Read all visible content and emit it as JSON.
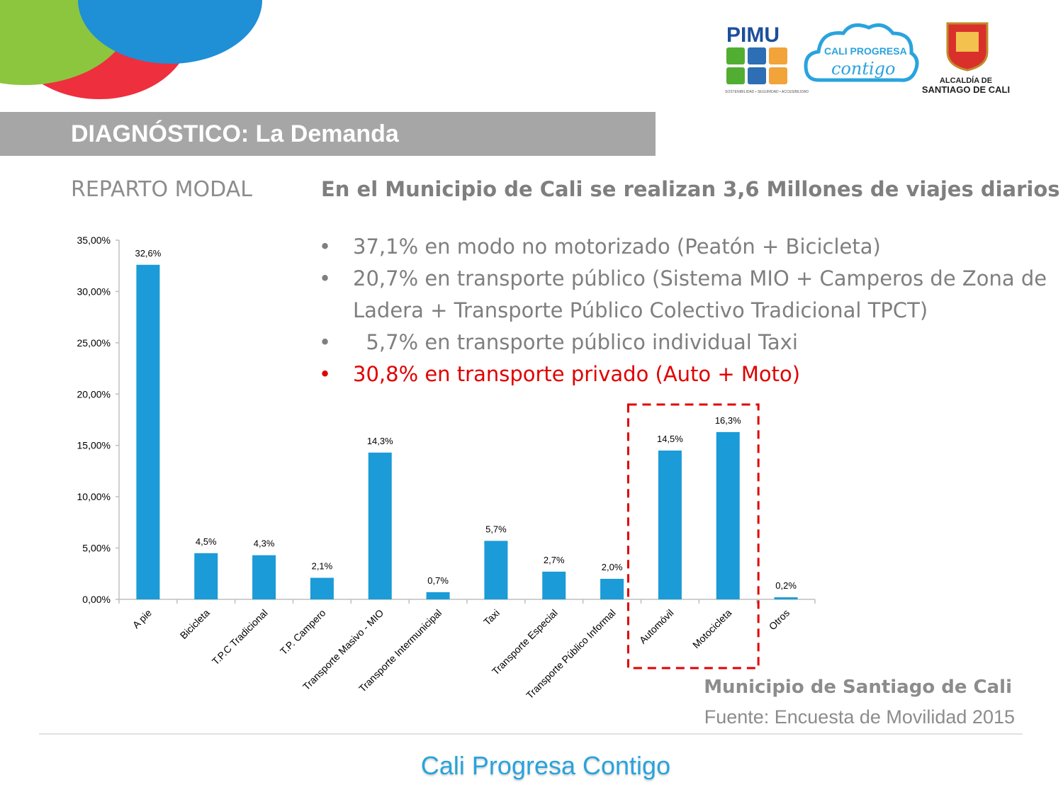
{
  "header": {
    "title": "DIAGNÓSTICO: La Demanda",
    "logos": {
      "pimu": "PIMU",
      "pimu_tagline": "SOSTENIBILIDAD • SEGURIDAD • ACCESIBILIDAD",
      "cali_line1": "CALI PROGRESA",
      "cali_line2": "contigo",
      "alcaldia_line1": "ALCALDÍA DE",
      "alcaldia_line2": "SANTIAGO DE CALI"
    }
  },
  "section_label": "REPARTO MODAL",
  "headline": "En el Municipio de Cali se realizan 3,6 Millones de viajes diarios",
  "bullets": [
    {
      "text": "37,1% en modo no motorizado (Peatón + Bicicleta)"
    },
    {
      "text": "20,7% en transporte público (Sistema MIO + Camperos de Zona de Ladera + Transporte Público Colectivo Tradicional TPCT)"
    },
    {
      "text": "  5,7% en transporte público individual Taxi"
    },
    {
      "text": "30,8% en transporte privado (Auto + Moto)"
    }
  ],
  "colors": {
    "bar": "#1b9bd7",
    "highlight": "#e00000",
    "title_bar": "#a6a6a6",
    "footer": "#29a3db"
  },
  "chart_data": {
    "type": "bar",
    "categories": [
      "A pie",
      "Bicicleta",
      "T.P.C Tradicional",
      "T.P. Campero",
      "Transporte Masivo - MIO",
      "Transporte Intermunicipal",
      "Taxi",
      "Transporte Especial",
      "Transporte Público Informal",
      "Automóvil",
      "Motocicleta",
      "Otros"
    ],
    "values": [
      32.6,
      4.5,
      4.3,
      2.1,
      14.3,
      0.7,
      5.7,
      2.7,
      2.0,
      14.5,
      16.3,
      0.2
    ],
    "data_labels": [
      "32,6%",
      "4,5%",
      "4,3%",
      "2,1%",
      "14,3%",
      "0,7%",
      "5,7%",
      "2,7%",
      "2,0%",
      "14,5%",
      "16,3%",
      "0,2%"
    ],
    "yticks": [
      "0,00%",
      "5,00%",
      "10,00%",
      "15,00%",
      "20,00%",
      "25,00%",
      "30,00%",
      "35,00%"
    ],
    "ylim": [
      0,
      35
    ],
    "grid": false,
    "highlight_categories": [
      "Automóvil",
      "Motocicleta"
    ]
  },
  "source": {
    "line1": "Municipio de Santiago de Cali",
    "line2": "Fuente: Encuesta de Movilidad 2015"
  },
  "footer": "Cali Progresa Contigo"
}
